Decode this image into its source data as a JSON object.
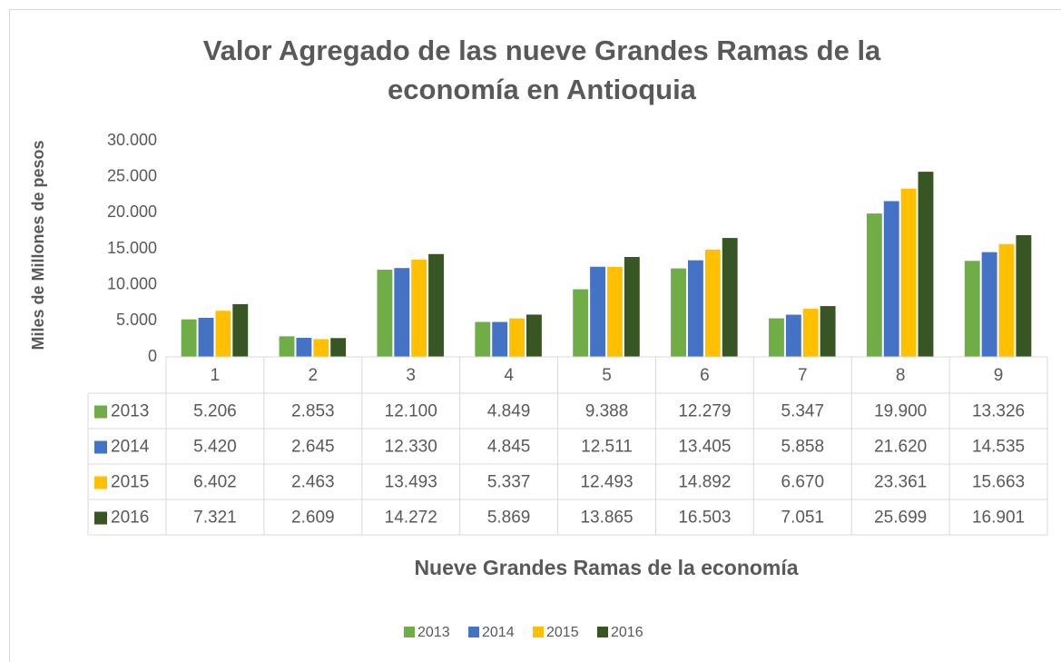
{
  "chart_data": {
    "type": "bar",
    "title": "Valor Agregado de las nueve Grandes Ramas de la economía en Antioquia",
    "x_label": "Nueve Grandes Ramas de la economía",
    "y_label": "Miles de Millones de pesos",
    "categories": [
      "1",
      "2",
      "3",
      "4",
      "5",
      "6",
      "7",
      "8",
      "9"
    ],
    "series": [
      {
        "name": "2013",
        "color": "#70ad47",
        "values": [
          5206,
          2853,
          12100,
          4849,
          9388,
          12279,
          5347,
          19900,
          13326
        ],
        "value_labels": [
          "5.206",
          "2.853",
          "12.100",
          "4.849",
          "9.388",
          "12.279",
          "5.347",
          "19.900",
          "13.326"
        ]
      },
      {
        "name": "2014",
        "color": "#4472c4",
        "values": [
          5420,
          2645,
          12330,
          4845,
          12511,
          13405,
          5858,
          21620,
          14535
        ],
        "value_labels": [
          "5.420",
          "2.645",
          "12.330",
          "4.845",
          "12.511",
          "13.405",
          "5.858",
          "21.620",
          "14.535"
        ]
      },
      {
        "name": "2015",
        "color": "#ffc000",
        "values": [
          6402,
          2463,
          13493,
          5337,
          12493,
          14892,
          6670,
          23361,
          15663
        ],
        "value_labels": [
          "6.402",
          "2.463",
          "13.493",
          "5.337",
          "12.493",
          "14.892",
          "6.670",
          "23.361",
          "15.663"
        ]
      },
      {
        "name": "2016",
        "color": "#375623",
        "values": [
          7321,
          2609,
          14272,
          5869,
          13865,
          16503,
          7051,
          25699,
          16901
        ],
        "value_labels": [
          "7.321",
          "2.609",
          "14.272",
          "5.869",
          "13.865",
          "16.503",
          "7.051",
          "25.699",
          "16.901"
        ]
      }
    ],
    "ylim": [
      0,
      30000
    ],
    "yticks": [
      0,
      {
        "value": 5000,
        "label": "5.000"
      },
      {
        "value": 10000,
        "label": "10.000"
      },
      {
        "value": 15000,
        "label": "15.000"
      },
      {
        "value": 20000,
        "label": "20.000"
      },
      {
        "value": 25000,
        "label": "25.000"
      },
      {
        "value": 30000,
        "label": "30.000"
      }
    ],
    "grid": false,
    "legend": "bottom"
  }
}
